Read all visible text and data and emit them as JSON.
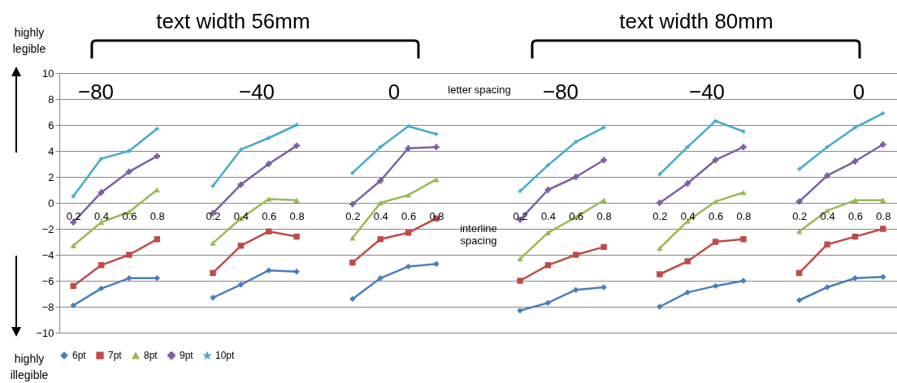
{
  "chart_data": {
    "type": "line",
    "xlabel": "interline spacing",
    "categories": [
      "0.2",
      "0.4",
      "0.6",
      "0.8",
      null,
      "0.2",
      "0.4",
      "0.6",
      "0.8",
      null,
      "0.2",
      "0.4",
      "0.6",
      "0.8",
      null,
      null,
      "0.2",
      "0.4",
      "0.6",
      "0.8",
      null,
      "0.2",
      "0.4",
      "0.6",
      "0.8",
      null,
      "0.2",
      "0.4",
      "0.6",
      "0.8"
    ],
    "series": [
      {
        "name": "6pt",
        "color": "#4a7ebb",
        "marker": "diamond",
        "values": [
          -7.9,
          -6.6,
          -5.8,
          -5.8,
          null,
          -7.3,
          -6.3,
          -5.2,
          -5.3,
          null,
          -7.4,
          -5.8,
          -4.9,
          -4.7,
          null,
          null,
          -8.3,
          -7.7,
          -6.7,
          -6.5,
          null,
          -8.0,
          -6.9,
          -6.4,
          -6.0,
          null,
          -7.5,
          -6.5,
          -5.8,
          -5.7
        ]
      },
      {
        "name": "7pt",
        "color": "#be4b48",
        "marker": "square",
        "values": [
          -6.4,
          -4.8,
          -4.0,
          -2.8,
          null,
          -5.4,
          -3.3,
          -2.2,
          -2.6,
          null,
          -4.6,
          -2.8,
          -2.3,
          -1.2,
          null,
          null,
          -6.0,
          -4.8,
          -4.0,
          -3.4,
          null,
          -5.5,
          -4.5,
          -3.0,
          -2.8,
          null,
          -5.4,
          -3.2,
          -2.6,
          -2.0
        ]
      },
      {
        "name": "8pt",
        "color": "#98b954",
        "marker": "triangle",
        "values": [
          -3.3,
          -1.5,
          -0.7,
          1.0,
          null,
          -3.1,
          -1.2,
          0.3,
          0.2,
          null,
          -2.7,
          0.0,
          0.6,
          1.8,
          null,
          null,
          -4.3,
          -2.3,
          -1.1,
          0.2,
          null,
          -3.5,
          -1.4,
          0.1,
          0.8,
          null,
          -2.2,
          -0.6,
          0.2,
          0.2
        ]
      },
      {
        "name": "9pt",
        "color": "#7d60a0",
        "marker": "cross",
        "values": [
          -1.5,
          0.8,
          2.4,
          3.6,
          null,
          -0.8,
          1.4,
          3.0,
          4.4,
          null,
          -0.1,
          1.7,
          4.2,
          4.3,
          null,
          null,
          -1.3,
          1.0,
          2.0,
          3.3,
          null,
          0.0,
          1.5,
          3.3,
          4.3,
          null,
          0.1,
          2.1,
          3.2,
          4.5
        ]
      },
      {
        "name": "10pt",
        "color": "#46aac5",
        "marker": "star",
        "values": [
          0.5,
          3.4,
          4.0,
          5.7,
          null,
          1.3,
          4.1,
          5.0,
          6.0,
          null,
          2.3,
          4.3,
          5.9,
          5.3,
          null,
          null,
          0.9,
          2.9,
          4.7,
          5.8,
          null,
          2.2,
          4.3,
          6.3,
          5.5,
          null,
          2.6,
          4.3,
          5.8,
          6.9
        ]
      }
    ],
    "ylim": [
      -10,
      10
    ],
    "yticks": [
      -10,
      -8,
      -6,
      -4,
      -2,
      0,
      2,
      4,
      6,
      8,
      10
    ],
    "grid": "y",
    "legend": "bottom",
    "line_style": "solid",
    "annotations": [
      "text width 56mm",
      "text width 80mm",
      "−80",
      "−40",
      "0",
      "letter spacing",
      "−80",
      "−40",
      "0",
      "highly legible",
      "highly illegible"
    ]
  }
}
